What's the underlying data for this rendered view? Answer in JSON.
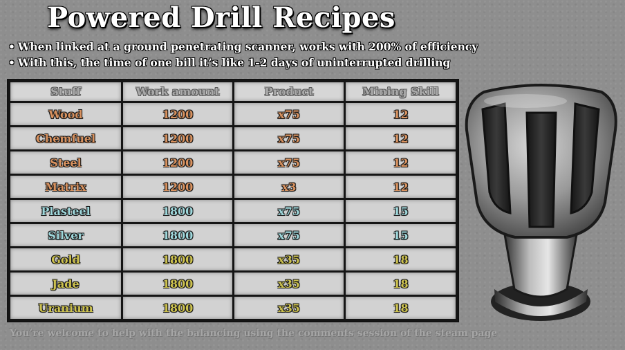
{
  "title": "Powered Drill Recipes",
  "notes": [
    "When linked at a ground penetrating scanner, works with 200% of efficiency",
    "With this, the time of one bill it’s like 1-2 days of uninterrupted drilling"
  ],
  "bullet": "•",
  "table": {
    "headers": [
      "Stuff",
      "Work amount",
      "Product",
      "Mining Skill"
    ],
    "rows": [
      {
        "stuff": "Wood",
        "work": "1200",
        "product": "x75",
        "skill": "12",
        "color": "#d9925f"
      },
      {
        "stuff": "Chemfuel",
        "work": "1200",
        "product": "x75",
        "skill": "12",
        "color": "#d9925f"
      },
      {
        "stuff": "Steel",
        "work": "1200",
        "product": "x75",
        "skill": "12",
        "color": "#d9925f"
      },
      {
        "stuff": "Matrix",
        "work": "1200",
        "product": "x3",
        "skill": "12",
        "color": "#d9925f"
      },
      {
        "stuff": "Plasteel",
        "work": "1800",
        "product": "x75",
        "skill": "15",
        "color": "#9fd8dc"
      },
      {
        "stuff": "Silver",
        "work": "1800",
        "product": "x75",
        "skill": "15",
        "color": "#9fd8dc"
      },
      {
        "stuff": "Gold",
        "work": "1800",
        "product": "x35",
        "skill": "18",
        "color": "#cdc24e"
      },
      {
        "stuff": "Jade",
        "work": "1800",
        "product": "x35",
        "skill": "18",
        "color": "#cdc24e"
      },
      {
        "stuff": "Uranium",
        "work": "1800",
        "product": "x35",
        "skill": "18",
        "color": "#cdc24e"
      }
    ]
  },
  "footer": "You’re welcome to help with the balancing using the comments session of the steam page",
  "icon": "powered-drill-icon"
}
